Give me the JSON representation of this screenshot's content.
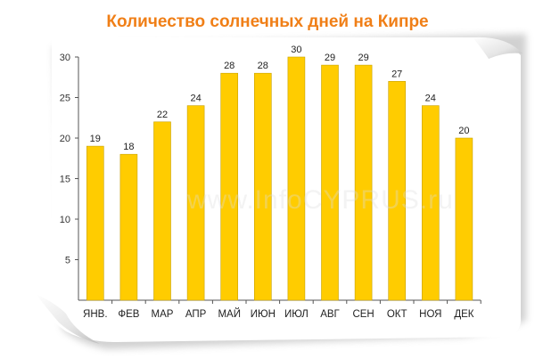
{
  "title": "Количество солнечных дней на Кипре",
  "watermark": "www.InfoCYPRUS.ru",
  "colors": {
    "bar_fill": "#ffcc00",
    "bar_stroke": "#c9a200",
    "title": "#f07f17",
    "axis": "#555555"
  },
  "chart_data": {
    "type": "bar",
    "title": "Количество солнечных дней на Кипре",
    "categories": [
      "ЯНВ.",
      "ФЕВ",
      "МАР",
      "АПР",
      "МАЙ",
      "ИЮН",
      "ИЮЛ",
      "АВГ",
      "СЕН",
      "ОКТ",
      "НОЯ",
      "ДЕК"
    ],
    "values": [
      19,
      18,
      22,
      24,
      28,
      28,
      30,
      29,
      29,
      27,
      24,
      20
    ],
    "xlabel": "",
    "ylabel": "",
    "ylim": [
      0,
      30
    ],
    "yticks": [
      5,
      10,
      15,
      20,
      25,
      30
    ],
    "grid": false,
    "data_labels": true
  }
}
